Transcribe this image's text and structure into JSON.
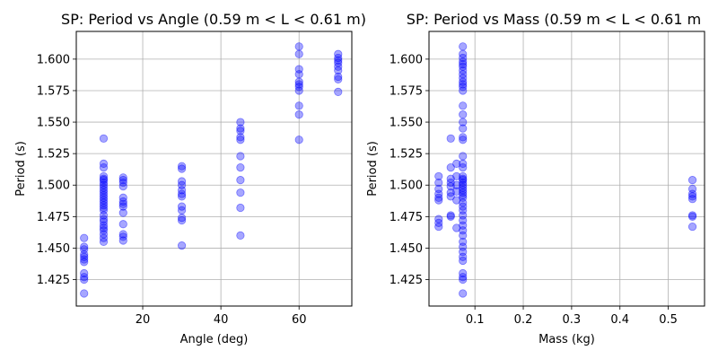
{
  "chart_data": [
    {
      "type": "scatter",
      "title": "SP: Period vs Angle (0.59 m < L < 0.61 m)",
      "xlabel": "Angle (deg)",
      "ylabel": "Period (s)",
      "xlim": [
        3,
        73.5
      ],
      "ylim": [
        1.404,
        1.622
      ],
      "xticks": [
        20,
        40,
        60
      ],
      "xtick_labels": [
        "20",
        "40",
        "60"
      ],
      "yticks": [
        1.425,
        1.45,
        1.475,
        1.5,
        1.525,
        1.55,
        1.575,
        1.6
      ],
      "ytick_labels": [
        "1.425",
        "1.450",
        "1.475",
        "1.500",
        "1.525",
        "1.550",
        "1.575",
        "1.600"
      ],
      "grid": true,
      "marker_color": "#0000ff",
      "marker_alpha": 0.35,
      "points": [
        [
          5,
          1.458
        ],
        [
          5,
          1.451
        ],
        [
          5,
          1.449
        ],
        [
          5,
          1.445
        ],
        [
          5,
          1.443
        ],
        [
          5,
          1.441
        ],
        [
          5,
          1.439
        ],
        [
          5,
          1.43
        ],
        [
          5,
          1.427
        ],
        [
          5,
          1.425
        ],
        [
          5,
          1.414
        ],
        [
          10,
          1.537
        ],
        [
          10,
          1.517
        ],
        [
          10,
          1.514
        ],
        [
          10,
          1.507
        ],
        [
          10,
          1.505
        ],
        [
          10,
          1.504
        ],
        [
          10,
          1.502
        ],
        [
          10,
          1.5
        ],
        [
          10,
          1.498
        ],
        [
          10,
          1.496
        ],
        [
          10,
          1.494
        ],
        [
          10,
          1.492
        ],
        [
          10,
          1.49
        ],
        [
          10,
          1.488
        ],
        [
          10,
          1.486
        ],
        [
          10,
          1.484
        ],
        [
          10,
          1.482
        ],
        [
          10,
          1.48
        ],
        [
          10,
          1.476
        ],
        [
          10,
          1.473
        ],
        [
          10,
          1.471
        ],
        [
          10,
          1.468
        ],
        [
          10,
          1.466
        ],
        [
          10,
          1.464
        ],
        [
          10,
          1.461
        ],
        [
          10,
          1.458
        ],
        [
          10,
          1.455
        ],
        [
          15,
          1.506
        ],
        [
          15,
          1.504
        ],
        [
          15,
          1.502
        ],
        [
          15,
          1.499
        ],
        [
          15,
          1.49
        ],
        [
          15,
          1.487
        ],
        [
          15,
          1.485
        ],
        [
          15,
          1.483
        ],
        [
          15,
          1.478
        ],
        [
          15,
          1.469
        ],
        [
          15,
          1.461
        ],
        [
          15,
          1.459
        ],
        [
          15,
          1.456
        ],
        [
          30,
          1.515
        ],
        [
          30,
          1.513
        ],
        [
          30,
          1.503
        ],
        [
          30,
          1.5
        ],
        [
          30,
          1.496
        ],
        [
          30,
          1.493
        ],
        [
          30,
          1.491
        ],
        [
          30,
          1.483
        ],
        [
          30,
          1.48
        ],
        [
          30,
          1.474
        ],
        [
          30,
          1.472
        ],
        [
          30,
          1.452
        ],
        [
          45,
          1.55
        ],
        [
          45,
          1.545
        ],
        [
          45,
          1.543
        ],
        [
          45,
          1.538
        ],
        [
          45,
          1.536
        ],
        [
          45,
          1.523
        ],
        [
          45,
          1.514
        ],
        [
          45,
          1.504
        ],
        [
          45,
          1.494
        ],
        [
          45,
          1.482
        ],
        [
          45,
          1.46
        ],
        [
          60,
          1.61
        ],
        [
          60,
          1.604
        ],
        [
          60,
          1.592
        ],
        [
          60,
          1.588
        ],
        [
          60,
          1.582
        ],
        [
          60,
          1.58
        ],
        [
          60,
          1.578
        ],
        [
          60,
          1.575
        ],
        [
          60,
          1.563
        ],
        [
          60,
          1.556
        ],
        [
          60,
          1.536
        ],
        [
          70,
          1.604
        ],
        [
          70,
          1.601
        ],
        [
          70,
          1.599
        ],
        [
          70,
          1.597
        ],
        [
          70,
          1.594
        ],
        [
          70,
          1.591
        ],
        [
          70,
          1.586
        ],
        [
          70,
          1.584
        ],
        [
          70,
          1.574
        ]
      ]
    },
    {
      "type": "scatter",
      "title": "SP: Period vs Mass (0.59 m < L < 0.61 m",
      "xlabel": "Mass (kg)",
      "ylabel": "Period (s)",
      "xlim": [
        0.005,
        0.575
      ],
      "ylim": [
        1.404,
        1.622
      ],
      "xticks": [
        0.1,
        0.2,
        0.3,
        0.4,
        0.5
      ],
      "xtick_labels": [
        "0.1",
        "0.2",
        "0.3",
        "0.4",
        "0.5"
      ],
      "yticks": [
        1.425,
        1.45,
        1.475,
        1.5,
        1.525,
        1.55,
        1.575,
        1.6
      ],
      "ytick_labels": [
        "1.425",
        "1.450",
        "1.475",
        "1.500",
        "1.525",
        "1.550",
        "1.575",
        "1.600"
      ],
      "grid": true,
      "marker_color": "#0000ff",
      "marker_alpha": 0.35,
      "points": [
        [
          0.025,
          1.507
        ],
        [
          0.025,
          1.502
        ],
        [
          0.025,
          1.497
        ],
        [
          0.025,
          1.493
        ],
        [
          0.025,
          1.49
        ],
        [
          0.025,
          1.488
        ],
        [
          0.025,
          1.473
        ],
        [
          0.025,
          1.47
        ],
        [
          0.025,
          1.467
        ],
        [
          0.05,
          1.537
        ],
        [
          0.05,
          1.514
        ],
        [
          0.05,
          1.505
        ],
        [
          0.05,
          1.502
        ],
        [
          0.05,
          1.499
        ],
        [
          0.05,
          1.494
        ],
        [
          0.05,
          1.491
        ],
        [
          0.05,
          1.476
        ],
        [
          0.05,
          1.475
        ],
        [
          0.062,
          1.517
        ],
        [
          0.062,
          1.507
        ],
        [
          0.062,
          1.5
        ],
        [
          0.062,
          1.495
        ],
        [
          0.062,
          1.488
        ],
        [
          0.062,
          1.466
        ],
        [
          0.075,
          1.61
        ],
        [
          0.075,
          1.604
        ],
        [
          0.075,
          1.601
        ],
        [
          0.075,
          1.598
        ],
        [
          0.075,
          1.596
        ],
        [
          0.075,
          1.594
        ],
        [
          0.075,
          1.591
        ],
        [
          0.075,
          1.588
        ],
        [
          0.075,
          1.585
        ],
        [
          0.075,
          1.582
        ],
        [
          0.075,
          1.58
        ],
        [
          0.075,
          1.578
        ],
        [
          0.075,
          1.575
        ],
        [
          0.075,
          1.563
        ],
        [
          0.075,
          1.556
        ],
        [
          0.075,
          1.55
        ],
        [
          0.075,
          1.545
        ],
        [
          0.075,
          1.538
        ],
        [
          0.075,
          1.536
        ],
        [
          0.075,
          1.523
        ],
        [
          0.075,
          1.517
        ],
        [
          0.075,
          1.514
        ],
        [
          0.075,
          1.507
        ],
        [
          0.075,
          1.505
        ],
        [
          0.075,
          1.504
        ],
        [
          0.075,
          1.502
        ],
        [
          0.075,
          1.5
        ],
        [
          0.075,
          1.498
        ],
        [
          0.075,
          1.496
        ],
        [
          0.075,
          1.494
        ],
        [
          0.075,
          1.492
        ],
        [
          0.075,
          1.49
        ],
        [
          0.075,
          1.486
        ],
        [
          0.075,
          1.483
        ],
        [
          0.075,
          1.48
        ],
        [
          0.075,
          1.476
        ],
        [
          0.075,
          1.472
        ],
        [
          0.075,
          1.468
        ],
        [
          0.075,
          1.464
        ],
        [
          0.075,
          1.46
        ],
        [
          0.075,
          1.455
        ],
        [
          0.075,
          1.451
        ],
        [
          0.075,
          1.447
        ],
        [
          0.075,
          1.443
        ],
        [
          0.075,
          1.44
        ],
        [
          0.075,
          1.43
        ],
        [
          0.075,
          1.427
        ],
        [
          0.075,
          1.425
        ],
        [
          0.075,
          1.414
        ],
        [
          0.55,
          1.504
        ],
        [
          0.55,
          1.497
        ],
        [
          0.55,
          1.493
        ],
        [
          0.55,
          1.491
        ],
        [
          0.55,
          1.489
        ],
        [
          0.55,
          1.476
        ],
        [
          0.55,
          1.475
        ],
        [
          0.55,
          1.467
        ]
      ]
    }
  ]
}
